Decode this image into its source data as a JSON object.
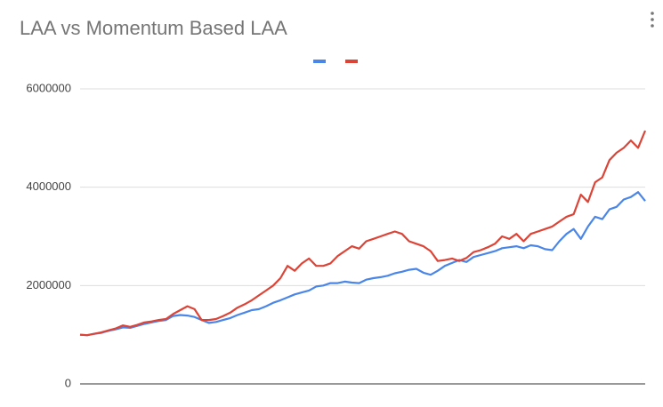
{
  "chart_data": {
    "type": "line",
    "title": "LAA vs Momentum Based LAA",
    "series": [
      {
        "color": "#4a86e8",
        "values": [
          1000000,
          990000,
          1020000,
          1040000,
          1080000,
          1110000,
          1150000,
          1140000,
          1180000,
          1220000,
          1250000,
          1280000,
          1300000,
          1380000,
          1400000,
          1390000,
          1360000,
          1300000,
          1240000,
          1260000,
          1300000,
          1340000,
          1400000,
          1450000,
          1500000,
          1520000,
          1580000,
          1650000,
          1700000,
          1760000,
          1820000,
          1860000,
          1900000,
          1980000,
          2000000,
          2050000,
          2050000,
          2080000,
          2060000,
          2050000,
          2120000,
          2150000,
          2170000,
          2200000,
          2250000,
          2280000,
          2320000,
          2340000,
          2260000,
          2220000,
          2300000,
          2400000,
          2460000,
          2520000,
          2480000,
          2580000,
          2620000,
          2660000,
          2700000,
          2760000,
          2780000,
          2800000,
          2760000,
          2820000,
          2800000,
          2740000,
          2720000,
          2900000,
          3050000,
          3150000,
          2950000,
          3200000,
          3400000,
          3350000,
          3550000,
          3600000,
          3750000,
          3800000,
          3900000,
          3720000
        ]
      },
      {
        "color": "#db4437",
        "values": [
          1000000,
          990000,
          1020000,
          1050000,
          1090000,
          1130000,
          1190000,
          1160000,
          1200000,
          1250000,
          1270000,
          1300000,
          1320000,
          1420000,
          1500000,
          1580000,
          1520000,
          1300000,
          1300000,
          1320000,
          1380000,
          1450000,
          1550000,
          1620000,
          1700000,
          1800000,
          1900000,
          2000000,
          2150000,
          2400000,
          2300000,
          2450000,
          2550000,
          2400000,
          2400000,
          2450000,
          2600000,
          2700000,
          2800000,
          2750000,
          2900000,
          2950000,
          3000000,
          3050000,
          3100000,
          3050000,
          2900000,
          2850000,
          2800000,
          2700000,
          2500000,
          2520000,
          2550000,
          2500000,
          2560000,
          2680000,
          2720000,
          2780000,
          2850000,
          3000000,
          2950000,
          3050000,
          2900000,
          3050000,
          3100000,
          3150000,
          3200000,
          3300000,
          3400000,
          3450000,
          3850000,
          3700000,
          4100000,
          4200000,
          4550000,
          4700000,
          4800000,
          4950000,
          4800000,
          5150000
        ]
      }
    ],
    "ylim": [
      0,
      6000000
    ],
    "yticks": [
      0,
      2000000,
      4000000,
      6000000
    ],
    "grid": true,
    "legend": "top"
  }
}
